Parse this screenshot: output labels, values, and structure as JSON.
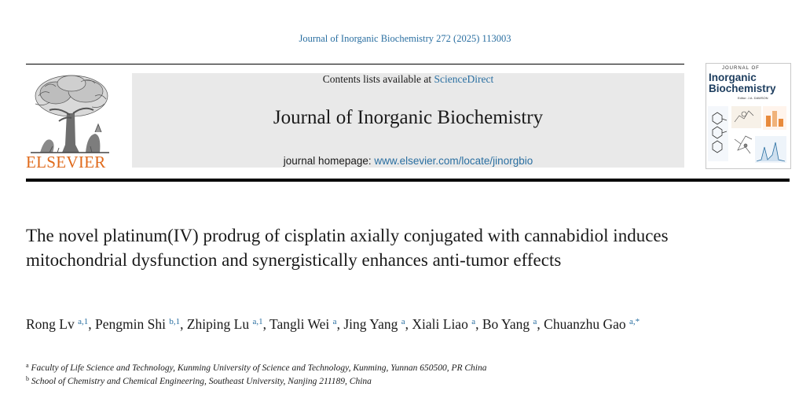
{
  "citation": "Journal of Inorganic Biochemistry 272 (2025) 113003",
  "header": {
    "contents_prefix": "Contents lists available at ",
    "contents_link": "ScienceDirect",
    "journal_name": "Journal of Inorganic Biochemistry",
    "homepage_prefix": "journal homepage: ",
    "homepage_url": "www.elsevier.com/locate/jinorgbio"
  },
  "publisher": {
    "name": "ELSEVIER",
    "color": "#e06a1b"
  },
  "cover": {
    "line1": "JOURNAL OF",
    "line2": "Inorganic",
    "line3": "Biochemistry",
    "editor": "Editor: J.A. DAWSON"
  },
  "article": {
    "title": "The novel platinum(IV) prodrug of cisplatin axially conjugated with cannabidiol induces mitochondrial dysfunction and synergistically enhances anti-tumor effects",
    "authors": [
      {
        "name": "Rong Lv",
        "sup": "a,1",
        "sep": ", "
      },
      {
        "name": "Pengmin Shi",
        "sup": "b,1",
        "sep": ", "
      },
      {
        "name": "Zhiping Lu",
        "sup": "a,1",
        "sep": ", "
      },
      {
        "name": "Tangli Wei",
        "sup": "a",
        "sep": ", "
      },
      {
        "name": "Jing Yang",
        "sup": "a",
        "sep": ", "
      },
      {
        "name": "Xiali Liao",
        "sup": "a",
        "sep": ", "
      },
      {
        "name": "Bo Yang",
        "sup": "a",
        "sep": ", "
      },
      {
        "name": "Chuanzhu Gao",
        "sup": "a,*",
        "sep": ""
      }
    ],
    "affiliations": [
      {
        "key": "a",
        "text": "Faculty of Life Science and Technology, Kunming University of Science and Technology, Kunming, Yunnan 650500, PR China"
      },
      {
        "key": "b",
        "text": "School of Chemistry and Chemical Engineering, Southeast University, Nanjing 211189, China"
      }
    ]
  },
  "colors": {
    "link": "#2a6fa1",
    "banner_bg": "#e9e9e9"
  }
}
